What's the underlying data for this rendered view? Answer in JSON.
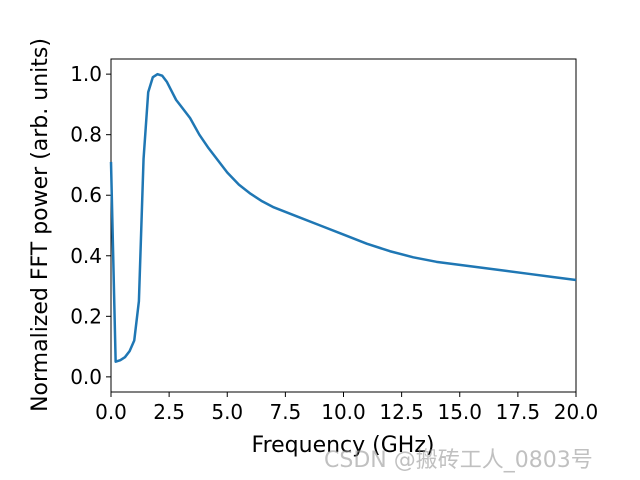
{
  "chart_data": {
    "type": "line",
    "xlabel": "Frequency  (GHz)",
    "ylabel": "Normalized  FFT  power  (arb. units)",
    "xlim": [
      0,
      20
    ],
    "ylim": [
      -0.05,
      1.05
    ],
    "xticks": [
      "0.0",
      "2.5",
      "5.0",
      "7.5",
      "10.0",
      "12.5",
      "15.0",
      "17.5",
      "20.0"
    ],
    "xtick_values": [
      0,
      2.5,
      5,
      7.5,
      10,
      12.5,
      15,
      17.5,
      20
    ],
    "yticks": [
      "0.0",
      "0.2",
      "0.4",
      "0.6",
      "0.8",
      "1.0"
    ],
    "ytick_values": [
      0,
      0.2,
      0.4,
      0.6,
      0.8,
      1.0
    ],
    "grid": false,
    "series": [
      {
        "color": "#1f77b4",
        "x": [
          0,
          0.2,
          0.4,
          0.6,
          0.8,
          1.0,
          1.2,
          1.4,
          1.6,
          1.8,
          2.0,
          2.2,
          2.4,
          2.6,
          2.8,
          3.0,
          3.4,
          3.8,
          4.2,
          4.6,
          5.0,
          5.5,
          6.0,
          6.5,
          7.0,
          8.0,
          9.0,
          10.0,
          11.0,
          12.0,
          13.0,
          14.0,
          15.0,
          16.0,
          17.0,
          18.0,
          19.0,
          20.0
        ],
        "y": [
          0.71,
          0.05,
          0.055,
          0.065,
          0.085,
          0.12,
          0.25,
          0.72,
          0.94,
          0.99,
          1.0,
          0.995,
          0.975,
          0.945,
          0.915,
          0.895,
          0.855,
          0.8,
          0.755,
          0.715,
          0.675,
          0.635,
          0.605,
          0.58,
          0.56,
          0.53,
          0.5,
          0.47,
          0.44,
          0.415,
          0.395,
          0.38,
          0.37,
          0.36,
          0.35,
          0.34,
          0.33,
          0.32
        ]
      }
    ]
  },
  "watermark": "CSDN @搬砖工人_0803号"
}
